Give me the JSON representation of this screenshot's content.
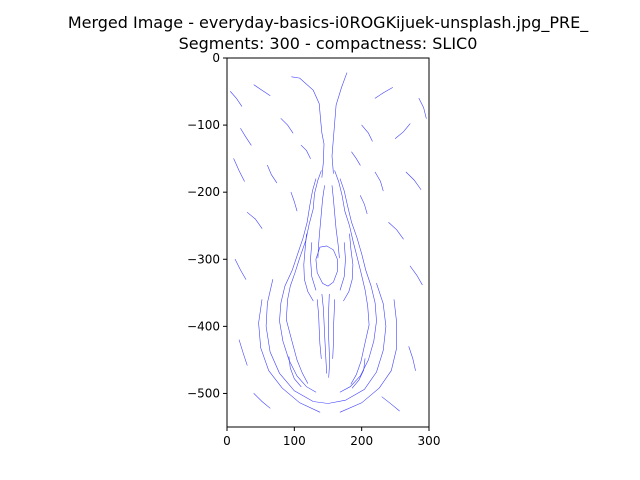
{
  "chart_data": {
    "type": "line",
    "title": "Merged Image - everyday-basics-i0ROGKijuek-unsplash.jpg_PRE_",
    "subtitle": "Segments: 300 - compactness: SLIC0",
    "xlabel": "",
    "ylabel": "",
    "xlim": [
      0,
      300
    ],
    "ylim": [
      -550,
      0
    ],
    "x_ticks": [
      0,
      100,
      200,
      300
    ],
    "y_ticks": [
      0,
      -100,
      -200,
      -300,
      -400,
      -500
    ],
    "grid": false,
    "line_color": "#4040ff",
    "series": [
      {
        "values": [
          [
            96,
            -28
          ],
          [
            108,
            -30
          ],
          [
            128,
            -48
          ],
          [
            137,
            -68
          ],
          [
            139,
            -92
          ],
          [
            141,
            -112
          ],
          [
            144,
            -128
          ],
          [
            143,
            -156
          ],
          [
            141,
            -178
          ]
        ]
      },
      {
        "values": [
          [
            178,
            -22
          ],
          [
            170,
            -44
          ],
          [
            162,
            -70
          ],
          [
            160,
            -96
          ],
          [
            158,
            -120
          ],
          [
            156,
            -146
          ],
          [
            158,
            -172
          ]
        ]
      },
      {
        "values": [
          [
            140,
            -168
          ],
          [
            135,
            -182
          ],
          [
            130,
            -202
          ],
          [
            128,
            -225
          ],
          [
            122,
            -248
          ],
          [
            117,
            -272
          ],
          [
            108,
            -298
          ],
          [
            101,
            -320
          ],
          [
            94,
            -340
          ],
          [
            90,
            -360
          ],
          [
            88,
            -390
          ],
          [
            96,
            -420
          ],
          [
            104,
            -450
          ],
          [
            112,
            -470
          ],
          [
            120,
            -485
          ]
        ]
      },
      {
        "values": [
          [
            160,
            -168
          ],
          [
            166,
            -185
          ],
          [
            171,
            -205
          ],
          [
            175,
            -228
          ],
          [
            182,
            -250
          ],
          [
            187,
            -272
          ],
          [
            193,
            -296
          ],
          [
            199,
            -320
          ],
          [
            205,
            -345
          ],
          [
            209,
            -370
          ],
          [
            211,
            -398
          ],
          [
            205,
            -425
          ],
          [
            199,
            -452
          ],
          [
            192,
            -472
          ],
          [
            184,
            -486
          ]
        ]
      },
      {
        "values": [
          [
            132,
            -180
          ],
          [
            127,
            -198
          ],
          [
            123,
            -220
          ],
          [
            119,
            -245
          ],
          [
            113,
            -268
          ],
          [
            105,
            -292
          ],
          [
            97,
            -316
          ],
          [
            86,
            -340
          ],
          [
            80,
            -365
          ],
          [
            78,
            -392
          ],
          [
            83,
            -422
          ],
          [
            92,
            -450
          ],
          [
            104,
            -474
          ],
          [
            118,
            -490
          ],
          [
            132,
            -498
          ]
        ]
      },
      {
        "values": [
          [
            168,
            -180
          ],
          [
            174,
            -198
          ],
          [
            179,
            -220
          ],
          [
            185,
            -245
          ],
          [
            193,
            -268
          ],
          [
            200,
            -292
          ],
          [
            206,
            -316
          ],
          [
            214,
            -340
          ],
          [
            220,
            -365
          ],
          [
            222,
            -392
          ],
          [
            218,
            -422
          ],
          [
            210,
            -450
          ],
          [
            198,
            -474
          ],
          [
            183,
            -490
          ],
          [
            168,
            -498
          ]
        ]
      },
      {
        "values": [
          [
            145,
            -190
          ],
          [
            142,
            -210
          ],
          [
            140,
            -232
          ],
          [
            138,
            -255
          ],
          [
            136,
            -278
          ],
          [
            135,
            -298
          ]
        ]
      },
      {
        "values": [
          [
            156,
            -190
          ],
          [
            158,
            -210
          ],
          [
            160,
            -232
          ],
          [
            162,
            -255
          ],
          [
            165,
            -278
          ],
          [
            167,
            -298
          ]
        ]
      },
      {
        "values": [
          [
            118,
            -262
          ],
          [
            116,
            -285
          ],
          [
            114,
            -308
          ],
          [
            115,
            -330
          ],
          [
            120,
            -348
          ],
          [
            128,
            -362
          ]
        ]
      },
      {
        "values": [
          [
            182,
            -262
          ],
          [
            184,
            -285
          ],
          [
            187,
            -308
          ],
          [
            186,
            -330
          ],
          [
            181,
            -348
          ],
          [
            173,
            -362
          ]
        ]
      },
      {
        "values": [
          [
            138,
            -282
          ],
          [
            132,
            -300
          ],
          [
            134,
            -320
          ],
          [
            142,
            -336
          ],
          [
            150,
            -340
          ],
          [
            158,
            -334
          ],
          [
            164,
            -318
          ],
          [
            164,
            -300
          ],
          [
            158,
            -286
          ],
          [
            148,
            -280
          ],
          [
            138,
            -282
          ]
        ]
      },
      {
        "values": [
          [
            126,
            -275
          ],
          [
            124,
            -300
          ],
          [
            126,
            -326
          ],
          [
            132,
            -346
          ]
        ]
      },
      {
        "values": [
          [
            174,
            -275
          ],
          [
            176,
            -300
          ],
          [
            174,
            -326
          ],
          [
            168,
            -346
          ]
        ]
      },
      {
        "values": [
          [
            141,
            -352
          ],
          [
            143,
            -372
          ],
          [
            144,
            -392
          ],
          [
            145,
            -412
          ],
          [
            146,
            -432
          ],
          [
            147,
            -452
          ],
          [
            148,
            -470
          ]
        ]
      },
      {
        "values": [
          [
            152,
            -352
          ],
          [
            151,
            -374
          ],
          [
            151,
            -396
          ],
          [
            151,
            -418
          ],
          [
            152,
            -440
          ],
          [
            152,
            -462
          ],
          [
            151,
            -476
          ]
        ]
      },
      {
        "values": [
          [
            134,
            -360
          ],
          [
            136,
            -382
          ],
          [
            137,
            -404
          ],
          [
            138,
            -426
          ],
          [
            140,
            -448
          ]
        ]
      },
      {
        "values": [
          [
            160,
            -360
          ],
          [
            159,
            -382
          ],
          [
            158,
            -404
          ],
          [
            158,
            -426
          ],
          [
            157,
            -448
          ]
        ]
      },
      {
        "values": [
          [
            68,
            -330
          ],
          [
            60,
            -365
          ],
          [
            58,
            -400
          ],
          [
            64,
            -438
          ],
          [
            78,
            -470
          ],
          [
            100,
            -496
          ],
          [
            128,
            -512
          ],
          [
            150,
            -515
          ],
          [
            176,
            -510
          ],
          [
            204,
            -494
          ],
          [
            222,
            -468
          ],
          [
            232,
            -436
          ],
          [
            236,
            -400
          ],
          [
            232,
            -366
          ],
          [
            222,
            -336
          ]
        ]
      },
      {
        "values": [
          [
            52,
            -360
          ],
          [
            47,
            -395
          ],
          [
            50,
            -432
          ],
          [
            62,
            -466
          ],
          [
            82,
            -492
          ],
          [
            108,
            -514
          ],
          [
            138,
            -528
          ]
        ]
      },
      {
        "values": [
          [
            248,
            -360
          ],
          [
            252,
            -395
          ],
          [
            252,
            -432
          ],
          [
            244,
            -466
          ],
          [
            226,
            -492
          ],
          [
            200,
            -514
          ],
          [
            168,
            -528
          ]
        ]
      },
      {
        "values": [
          [
            92,
            -445
          ],
          [
            94,
            -462
          ],
          [
            100,
            -478
          ],
          [
            110,
            -490
          ]
        ]
      },
      {
        "values": [
          [
            205,
            -448
          ],
          [
            203,
            -465
          ],
          [
            196,
            -480
          ],
          [
            186,
            -492
          ]
        ]
      },
      {
        "values": [
          [
            20,
            -105
          ],
          [
            28,
            -118
          ],
          [
            36,
            -130
          ]
        ]
      },
      {
        "values": [
          [
            10,
            -150
          ],
          [
            18,
            -168
          ],
          [
            26,
            -184
          ]
        ]
      },
      {
        "values": [
          [
            40,
            -40
          ],
          [
            52,
            -48
          ],
          [
            64,
            -56
          ]
        ]
      },
      {
        "values": [
          [
            220,
            -60
          ],
          [
            232,
            -52
          ],
          [
            246,
            -44
          ]
        ]
      },
      {
        "values": [
          [
            250,
            -120
          ],
          [
            262,
            -110
          ],
          [
            272,
            -98
          ]
        ]
      },
      {
        "values": [
          [
            266,
            -170
          ],
          [
            278,
            -182
          ],
          [
            288,
            -196
          ]
        ]
      },
      {
        "values": [
          [
            30,
            -230
          ],
          [
            42,
            -240
          ],
          [
            52,
            -254
          ]
        ]
      },
      {
        "values": [
          [
            240,
            -245
          ],
          [
            252,
            -256
          ],
          [
            262,
            -270
          ]
        ]
      },
      {
        "values": [
          [
            12,
            -300
          ],
          [
            20,
            -316
          ],
          [
            28,
            -330
          ]
        ]
      },
      {
        "values": [
          [
            272,
            -310
          ],
          [
            282,
            -324
          ],
          [
            290,
            -338
          ]
        ]
      },
      {
        "values": [
          [
            18,
            -420
          ],
          [
            24,
            -440
          ],
          [
            30,
            -458
          ]
        ]
      },
      {
        "values": [
          [
            270,
            -430
          ],
          [
            276,
            -448
          ],
          [
            280,
            -466
          ]
        ]
      },
      {
        "values": [
          [
            40,
            -500
          ],
          [
            52,
            -512
          ],
          [
            64,
            -522
          ]
        ]
      },
      {
        "values": [
          [
            230,
            -505
          ],
          [
            244,
            -516
          ],
          [
            256,
            -526
          ]
        ]
      },
      {
        "values": [
          [
            80,
            -90
          ],
          [
            90,
            -100
          ],
          [
            98,
            -112
          ]
        ]
      },
      {
        "values": [
          [
            200,
            -100
          ],
          [
            210,
            -112
          ],
          [
            216,
            -124
          ]
        ]
      },
      {
        "values": [
          [
            60,
            -160
          ],
          [
            66,
            -174
          ],
          [
            74,
            -186
          ]
        ]
      },
      {
        "values": [
          [
            220,
            -170
          ],
          [
            228,
            -184
          ],
          [
            232,
            -198
          ]
        ]
      },
      {
        "values": [
          [
            95,
            -200
          ],
          [
            100,
            -214
          ],
          [
            104,
            -228
          ]
        ]
      },
      {
        "values": [
          [
            198,
            -205
          ],
          [
            204,
            -218
          ],
          [
            208,
            -232
          ]
        ]
      },
      {
        "values": [
          [
            285,
            -60
          ],
          [
            292,
            -74
          ],
          [
            296,
            -90
          ]
        ]
      },
      {
        "values": [
          [
            5,
            -50
          ],
          [
            14,
            -60
          ],
          [
            22,
            -72
          ]
        ]
      },
      {
        "values": [
          [
            110,
            -130
          ],
          [
            118,
            -138
          ],
          [
            124,
            -150
          ]
        ]
      },
      {
        "values": [
          [
            185,
            -140
          ],
          [
            192,
            -150
          ],
          [
            198,
            -160
          ]
        ]
      }
    ]
  }
}
